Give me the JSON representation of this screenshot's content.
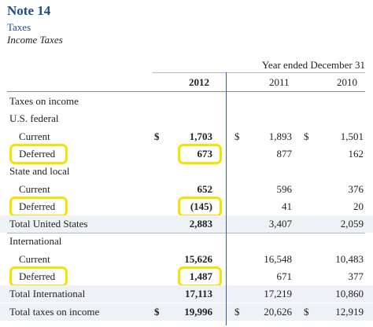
{
  "note": {
    "title": "Note 14",
    "subtitle": "Taxes",
    "section": "Income Taxes"
  },
  "table": {
    "period_header": "Year ended December 31",
    "years": [
      "2012",
      "2011",
      "2010"
    ],
    "rows": [
      {
        "label": "Taxes on income",
        "indent": 0,
        "values": [
          "",
          "",
          ""
        ],
        "dollars": [
          false,
          false,
          false
        ],
        "bold_label": false,
        "highlight": false
      },
      {
        "label": "U.S. federal",
        "indent": 0,
        "values": [
          "",
          "",
          ""
        ],
        "dollars": [
          false,
          false,
          false
        ],
        "bold_label": false,
        "highlight": false
      },
      {
        "label": "Current",
        "indent": 1,
        "values": [
          "1,703",
          "1,893",
          "1,501"
        ],
        "dollars": [
          true,
          true,
          true
        ],
        "bold_label": false,
        "highlight": false
      },
      {
        "label": "Deferred",
        "indent": 1,
        "values": [
          "673",
          "877",
          "162"
        ],
        "dollars": [
          false,
          false,
          false
        ],
        "bold_label": false,
        "highlight": true
      },
      {
        "label": "State and local",
        "indent": 0,
        "values": [
          "",
          "",
          ""
        ],
        "dollars": [
          false,
          false,
          false
        ],
        "bold_label": false,
        "highlight": false
      },
      {
        "label": "Current",
        "indent": 1,
        "values": [
          "652",
          "596",
          "376"
        ],
        "dollars": [
          false,
          false,
          false
        ],
        "bold_label": false,
        "highlight": false
      },
      {
        "label": "Deferred",
        "indent": 1,
        "values": [
          "(145)",
          "41",
          "20"
        ],
        "dollars": [
          false,
          false,
          false
        ],
        "bold_label": false,
        "highlight": true
      },
      {
        "label": "Total United States",
        "indent": 0,
        "values": [
          "2,883",
          "3,407",
          "2,059"
        ],
        "dollars": [
          false,
          false,
          false
        ],
        "bold_label": false,
        "highlight": false
      },
      {
        "label": "International",
        "indent": 0,
        "values": [
          "",
          "",
          ""
        ],
        "dollars": [
          false,
          false,
          false
        ],
        "bold_label": false,
        "highlight": false
      },
      {
        "label": "Current",
        "indent": 1,
        "values": [
          "15,626",
          "16,548",
          "10,483"
        ],
        "dollars": [
          false,
          false,
          false
        ],
        "bold_label": false,
        "highlight": false
      },
      {
        "label": "Deferred",
        "indent": 1,
        "values": [
          "1,487",
          "671",
          "377"
        ],
        "dollars": [
          false,
          false,
          false
        ],
        "bold_label": false,
        "highlight": true
      },
      {
        "label": "Total International",
        "indent": 0,
        "values": [
          "17,113",
          "17,219",
          "10,860"
        ],
        "dollars": [
          false,
          false,
          false
        ],
        "bold_label": false,
        "highlight": false
      },
      {
        "label": "Total taxes on income",
        "indent": 0,
        "values": [
          "19,996",
          "20,626",
          "12,919"
        ],
        "dollars": [
          true,
          true,
          true
        ],
        "bold_label": false,
        "highlight": false
      }
    ],
    "currency_symbol": "$"
  },
  "colors": {
    "title": "#1a4f8a",
    "highlight_box": "#f2e300",
    "column_divider": "#2f62a8"
  }
}
